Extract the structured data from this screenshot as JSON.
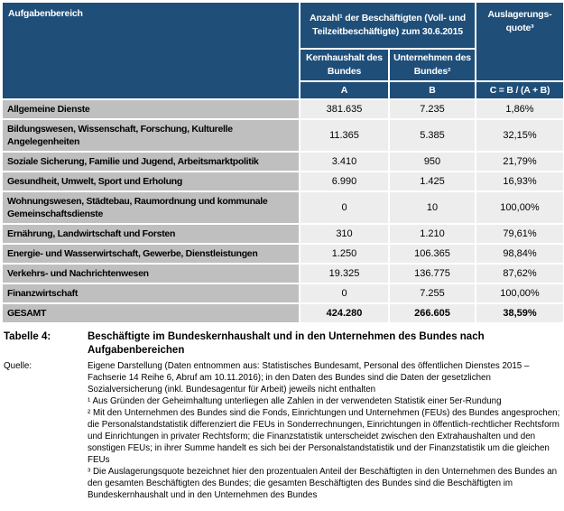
{
  "table": {
    "header": {
      "col_task": "Aufgabenbereich",
      "group_count": "Anzahl¹ der Beschäftigten (Voll- und Teilzeitbeschäftigte) zum 30.6.2015",
      "col_core": "Kernhaushalt des Bundes",
      "col_companies": "Unternehmen des Bundes²",
      "col_quota": "Auslagerungs-quote³",
      "sub_a": "A",
      "sub_b": "B",
      "sub_c": "C = B / (A + B)"
    },
    "rows": [
      {
        "label": "Allgemeine Dienste",
        "a": "381.635",
        "b": "7.235",
        "c": "1,86%"
      },
      {
        "label": "Bildungswesen, Wissenschaft, Forschung, Kulturelle Angelegenheiten",
        "a": "11.365",
        "b": "5.385",
        "c": "32,15%"
      },
      {
        "label": "Soziale Sicherung, Familie und Jugend, Arbeitsmarktpolitik",
        "a": "3.410",
        "b": "950",
        "c": "21,79%"
      },
      {
        "label": "Gesundheit, Umwelt, Sport und Erholung",
        "a": "6.990",
        "b": "1.425",
        "c": "16,93%"
      },
      {
        "label": "Wohnungswesen, Städtebau, Raumordnung und kommunale Gemeinschaftsdienste",
        "a": "0",
        "b": "10",
        "c": "100,00%"
      },
      {
        "label": "Ernährung, Landwirtschaft und Forsten",
        "a": "310",
        "b": "1.210",
        "c": "79,61%"
      },
      {
        "label": "Energie- und Wasserwirtschaft, Gewerbe, Dienstleistungen",
        "a": "1.250",
        "b": "106.365",
        "c": "98,84%"
      },
      {
        "label": "Verkehrs- und Nachrichtenwesen",
        "a": "19.325",
        "b": "136.775",
        "c": "87,62%"
      },
      {
        "label": "Finanzwirtschaft",
        "a": "0",
        "b": "7.255",
        "c": "100,00%"
      },
      {
        "label": "GESAMT",
        "a": "424.280",
        "b": "266.605",
        "c": "38,59%"
      }
    ]
  },
  "caption": {
    "label": "Tabelle 4:",
    "title": "Beschäftigte im Bundeskernhaushalt und in den Unternehmen des Bundes nach Aufgabenbereichen"
  },
  "source": {
    "label": "Quelle:",
    "text": "Eigene Darstellung (Daten entnommen aus: Statistisches Bundesamt, Personal des öffentlichen Dienstes 2015 – Fachserie 14 Reihe 6, Abruf am 10.11.2016); in den Daten des Bundes sind die Daten der gesetzlichen Sozialversicherung (inkl. Bundesagentur für Arbeit) jeweils nicht enthalten",
    "footnote1": "¹ Aus Gründen der Geheimhaltung unterliegen alle Zahlen in der verwendeten Statistik einer 5er-Rundung",
    "footnote2": "² Mit den Unternehmen des Bundes sind die Fonds, Einrichtungen und Unternehmen (FEUs) des Bundes angesprochen; die Personalstandstatistik differenziert die FEUs in Sonderrechnungen, Einrichtungen in öffentlich-rechtlicher Rechtsform und Einrichtungen in privater Rechtsform; die Finanzstatistik unterscheidet zwischen den Extrahaushalten und den sonstigen FEUs; in ihrer Summe handelt es sich bei der Personalstandstatistik und der Finanzstatistik um die gleichen FEUs",
    "footnote3": "³ Die Auslagerungsquote bezeichnet hier den prozentualen Anteil der Beschäftigten in den Unternehmen des Bundes an den gesamten Beschäftigten des Bundes; die gesamten Beschäftigten des Bundes sind die Beschäftigten im Bundeskernhaushalt und in den Unternehmen des Bundes"
  },
  "colors": {
    "header_bg": "#1F4E79",
    "header_text": "#FFFFFF",
    "label_column_bg": "#BFBFBF",
    "data_cell_bg": "#EDEDED"
  }
}
